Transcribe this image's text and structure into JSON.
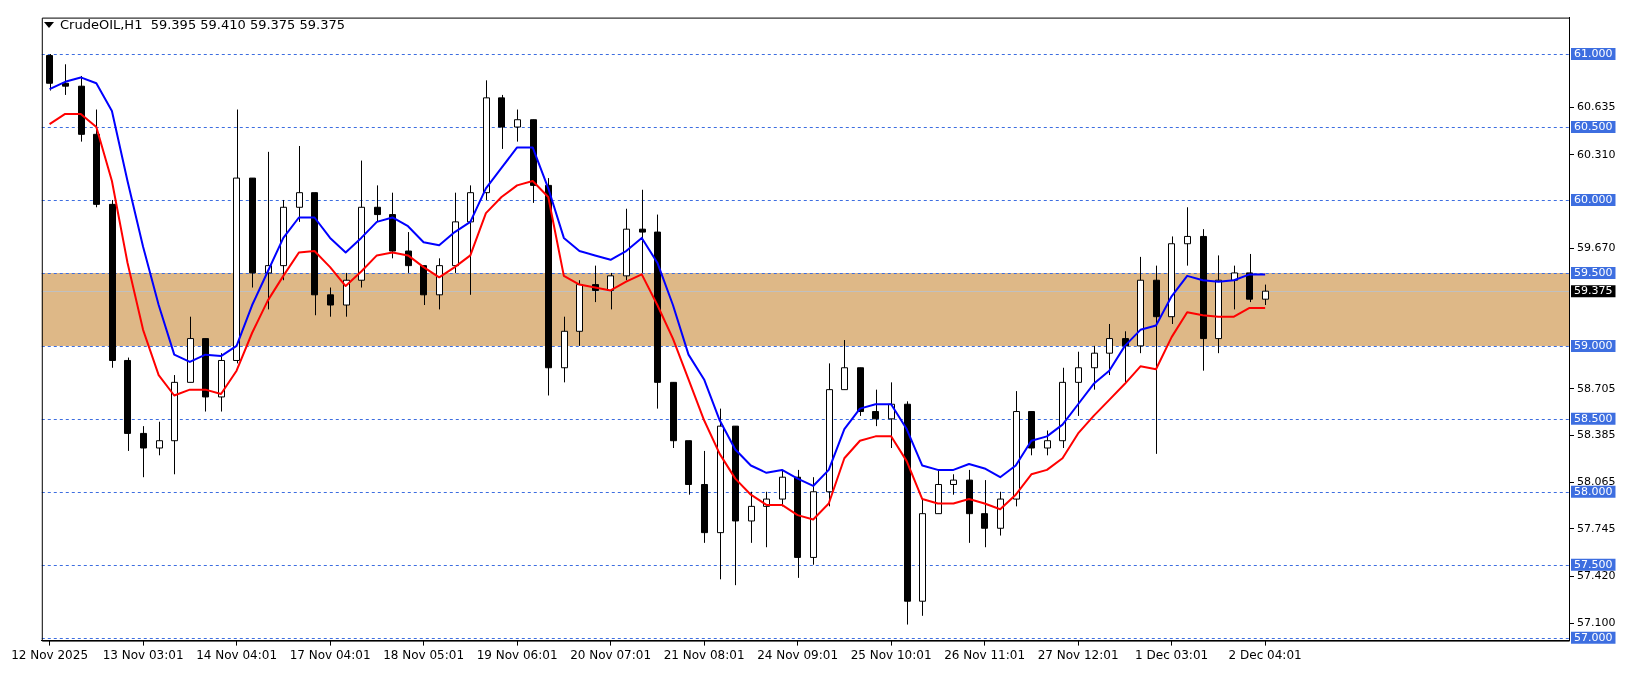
{
  "chart_data": {
    "type": "candlestick",
    "title": "CrudeOIL,H1  59.395 59.410 59.375 59.375",
    "color": "#000000",
    "categories": [
      "12 Nov 2025",
      null,
      null,
      null,
      null,
      null,
      "13 Nov 03:01",
      null,
      null,
      null,
      null,
      null,
      "14 Nov 04:01",
      null,
      null,
      null,
      null,
      null,
      "17 Nov 04:01",
      null,
      null,
      null,
      null,
      null,
      "18 Nov 05:01",
      null,
      null,
      null,
      null,
      null,
      "19 Nov 06:01",
      null,
      null,
      null,
      null,
      null,
      "20 Nov 07:01",
      null,
      null,
      null,
      null,
      null,
      "21 Nov 08:01",
      null,
      null,
      null,
      null,
      null,
      "24 Nov 09:01",
      null,
      null,
      null,
      null,
      null,
      "25 Nov 10:01",
      null,
      null,
      null,
      null,
      null,
      "26 Nov 11:01",
      null,
      null,
      null,
      null,
      null,
      "27 Nov 12:01",
      null,
      null,
      null,
      null,
      null,
      "1 Dec 03:01",
      null,
      null,
      null,
      null,
      null,
      "2 Dec 04:01",
      null,
      null,
      null,
      null,
      null,
      null,
      null,
      null,
      null,
      null,
      null,
      null,
      null,
      null,
      null,
      null,
      null,
      null,
      null
    ],
    "ohlc": [
      [
        60.99,
        61.0,
        60.75,
        60.8
      ],
      [
        60.8,
        60.93,
        60.72,
        60.78
      ],
      [
        60.78,
        60.85,
        60.4,
        60.45
      ],
      [
        60.45,
        60.62,
        59.95,
        59.97
      ],
      [
        59.97,
        60.0,
        58.85,
        58.9
      ],
      [
        58.9,
        58.92,
        58.28,
        58.4
      ],
      [
        58.4,
        58.45,
        58.1,
        58.3
      ],
      [
        58.3,
        58.48,
        58.25,
        58.35
      ],
      [
        58.35,
        58.8,
        58.12,
        58.75
      ],
      [
        58.75,
        59.2,
        58.75,
        59.05
      ],
      [
        59.05,
        59.05,
        58.55,
        58.65
      ],
      [
        58.65,
        58.95,
        58.55,
        58.9
      ],
      [
        58.9,
        60.62,
        58.88,
        60.15
      ],
      [
        60.15,
        60.15,
        59.4,
        59.5
      ],
      [
        59.5,
        60.33,
        59.25,
        59.55
      ],
      [
        59.55,
        60.0,
        59.45,
        59.95
      ],
      [
        59.95,
        60.37,
        59.85,
        60.05
      ],
      [
        60.05,
        60.05,
        59.21,
        59.35
      ],
      [
        59.35,
        59.4,
        59.2,
        59.28
      ],
      [
        59.28,
        59.5,
        59.2,
        59.45
      ],
      [
        59.45,
        60.27,
        59.4,
        59.95
      ],
      [
        59.95,
        60.1,
        59.85,
        59.9
      ],
      [
        59.9,
        60.05,
        59.6,
        59.65
      ],
      [
        59.65,
        59.78,
        59.5,
        59.55
      ],
      [
        59.55,
        59.55,
        59.28,
        59.35
      ],
      [
        59.35,
        59.6,
        59.25,
        59.55
      ],
      [
        59.55,
        60.05,
        59.5,
        59.85
      ],
      [
        59.85,
        60.1,
        59.35,
        60.05
      ],
      [
        60.05,
        60.82,
        60.0,
        60.7
      ],
      [
        60.7,
        60.72,
        60.35,
        60.5
      ],
      [
        60.5,
        60.62,
        60.4,
        60.55
      ],
      [
        60.55,
        60.55,
        59.98,
        60.1
      ],
      [
        60.1,
        60.15,
        58.66,
        58.85
      ],
      [
        58.85,
        59.2,
        58.75,
        59.1
      ],
      [
        59.1,
        59.45,
        59.0,
        59.42
      ],
      [
        59.42,
        59.55,
        59.3,
        59.38
      ],
      [
        59.38,
        59.5,
        59.25,
        59.48
      ],
      [
        59.48,
        59.94,
        59.45,
        59.8
      ],
      [
        59.8,
        60.07,
        59.5,
        59.78
      ],
      [
        59.78,
        59.9,
        58.57,
        58.75
      ],
      [
        58.75,
        58.75,
        58.3,
        58.35
      ],
      [
        58.35,
        58.35,
        57.98,
        58.05
      ],
      [
        58.05,
        58.28,
        57.65,
        57.72
      ],
      [
        57.72,
        58.57,
        57.4,
        58.45
      ],
      [
        58.45,
        58.45,
        57.36,
        57.8
      ],
      [
        57.8,
        58.0,
        57.65,
        57.9
      ],
      [
        57.9,
        58.0,
        57.62,
        57.95
      ],
      [
        57.95,
        58.15,
        57.9,
        58.1
      ],
      [
        58.1,
        58.15,
        57.41,
        57.55
      ],
      [
        57.55,
        58.1,
        57.5,
        58.0
      ],
      [
        58.0,
        58.88,
        57.9,
        58.7
      ],
      [
        58.7,
        59.04,
        58.7,
        58.85
      ],
      [
        58.85,
        58.85,
        58.52,
        58.55
      ],
      [
        58.55,
        58.7,
        58.45,
        58.5
      ],
      [
        58.5,
        58.75,
        58.3,
        58.6
      ],
      [
        58.6,
        58.62,
        57.09,
        57.25
      ],
      [
        57.25,
        57.95,
        57.15,
        57.85
      ],
      [
        57.85,
        58.15,
        57.85,
        58.05
      ],
      [
        58.05,
        58.12,
        57.98,
        58.08
      ],
      [
        58.08,
        58.15,
        57.65,
        57.85
      ],
      [
        57.85,
        58.08,
        57.62,
        57.75
      ],
      [
        57.75,
        58.0,
        57.7,
        57.95
      ],
      [
        57.95,
        58.69,
        57.9,
        58.55
      ],
      [
        58.55,
        58.55,
        58.25,
        58.3
      ],
      [
        58.3,
        58.42,
        58.25,
        58.35
      ],
      [
        58.35,
        58.85,
        58.3,
        58.75
      ],
      [
        58.75,
        58.96,
        58.52,
        58.85
      ],
      [
        58.85,
        59.0,
        58.7,
        58.95
      ],
      [
        58.95,
        59.15,
        58.8,
        59.05
      ],
      [
        59.05,
        59.1,
        58.75,
        59.0
      ],
      [
        59.0,
        59.61,
        58.95,
        59.45
      ],
      [
        59.45,
        59.55,
        58.26,
        59.2
      ],
      [
        59.2,
        59.75,
        59.15,
        59.7
      ],
      [
        59.7,
        59.95,
        59.55,
        59.75
      ],
      [
        59.75,
        59.8,
        58.83,
        59.05
      ],
      [
        59.05,
        59.62,
        58.95,
        59.45
      ],
      [
        59.45,
        59.55,
        59.25,
        59.5
      ],
      [
        59.5,
        59.63,
        59.3,
        59.32
      ],
      [
        59.32,
        59.42,
        59.28,
        59.375
      ],
      null,
      null,
      null,
      null,
      null,
      null,
      null,
      null,
      null,
      null,
      null,
      null,
      null,
      null,
      null,
      null,
      null,
      null,
      null
    ],
    "series": [
      {
        "type": "line",
        "color": "#0000ff",
        "values": [
          60.76,
          60.81,
          60.84,
          60.8,
          60.61,
          60.13,
          59.68,
          59.28,
          58.94,
          58.89,
          58.94,
          58.93,
          59.0,
          59.28,
          59.51,
          59.74,
          59.88,
          59.88,
          59.74,
          59.64,
          59.74,
          59.85,
          59.88,
          59.82,
          59.71,
          59.69,
          59.78,
          59.85,
          60.08,
          60.22,
          60.36,
          60.36,
          60.08,
          59.74,
          59.65,
          59.62,
          59.59,
          59.65,
          59.74,
          59.57,
          59.28,
          58.94,
          58.77,
          58.49,
          58.29,
          58.18,
          58.13,
          58.15,
          58.09,
          58.04,
          58.15,
          58.43,
          58.57,
          58.6,
          58.6,
          58.43,
          58.18,
          58.15,
          58.15,
          58.19,
          58.16,
          58.1,
          58.18,
          58.35,
          58.38,
          58.46,
          58.6,
          58.74,
          58.83,
          59.0,
          59.11,
          59.14,
          59.34,
          59.48,
          59.45,
          59.44,
          59.45,
          59.49,
          59.49,
          null,
          null,
          null,
          null,
          null,
          null,
          null,
          null,
          null,
          null,
          null,
          null,
          null,
          null,
          null,
          null,
          null,
          null,
          null
        ]
      },
      {
        "type": "line",
        "color": "#ff0000",
        "values": [
          60.52,
          60.59,
          60.59,
          60.5,
          60.13,
          59.57,
          59.11,
          58.8,
          58.66,
          58.7,
          58.7,
          58.67,
          58.83,
          59.09,
          59.31,
          59.48,
          59.64,
          59.65,
          59.54,
          59.41,
          59.51,
          59.62,
          59.64,
          59.62,
          59.54,
          59.47,
          59.54,
          59.62,
          59.91,
          60.02,
          60.1,
          60.13,
          60.02,
          59.48,
          59.42,
          59.4,
          59.38,
          59.44,
          59.49,
          59.28,
          59.05,
          58.77,
          58.49,
          58.26,
          58.09,
          57.98,
          57.91,
          57.91,
          57.84,
          57.81,
          57.92,
          58.23,
          58.35,
          58.38,
          58.38,
          58.21,
          57.95,
          57.92,
          57.92,
          57.95,
          57.92,
          57.88,
          57.98,
          58.12,
          58.15,
          58.23,
          58.4,
          58.52,
          58.63,
          58.74,
          58.86,
          58.84,
          59.06,
          59.23,
          59.21,
          59.2,
          59.2,
          59.26,
          59.26,
          null,
          null,
          null,
          null,
          null,
          null,
          null,
          null,
          null,
          null,
          null,
          null,
          null,
          null,
          null,
          null,
          null,
          null,
          null
        ]
      }
    ],
    "ylim": [
      56.98,
      61.25
    ],
    "yticks": [
      {
        "value": 60.635,
        "label": "60.635"
      },
      {
        "value": 60.31,
        "label": "60.310"
      },
      {
        "value": 59.67,
        "label": "59.670"
      },
      {
        "value": 58.705,
        "label": "58.705"
      },
      {
        "value": 58.385,
        "label": "58.385"
      },
      {
        "value": 58.065,
        "label": "58.065"
      },
      {
        "value": 57.745,
        "label": "57.745"
      },
      {
        "value": 57.42,
        "label": "57.420"
      },
      {
        "value": 57.1,
        "label": "57.100"
      }
    ],
    "ref_lines": [
      {
        "axis": "y",
        "value": 61,
        "label": "61.000",
        "color": "#3d6ee0",
        "line_style": "dashed"
      },
      {
        "axis": "y",
        "value": 60.5,
        "label": "60.500",
        "color": "#3d6ee0",
        "line_style": "dashed"
      },
      {
        "axis": "y",
        "value": 60,
        "label": "60.000",
        "color": "#3d6ee0",
        "line_style": "dashed"
      },
      {
        "axis": "y",
        "value": 59.5,
        "label": "59.500",
        "color": "#3d6ee0",
        "line_style": "dashed"
      },
      {
        "axis": "y",
        "value": 59.375,
        "label": "59.375",
        "color": "#c0c0c0",
        "line_style": "solid"
      },
      {
        "axis": "y",
        "value": 59,
        "label": "59.000",
        "color": "#3d6ee0",
        "line_style": "dashed"
      },
      {
        "axis": "y",
        "value": 58.5,
        "label": "58.500",
        "color": "#3d6ee0",
        "line_style": "dashed"
      },
      {
        "axis": "y",
        "value": 58,
        "label": "58.000",
        "color": "#3d6ee0",
        "line_style": "dashed"
      },
      {
        "axis": "y",
        "value": 57.5,
        "label": "57.500",
        "color": "#3d6ee0",
        "line_style": "dashed"
      },
      {
        "axis": "y",
        "value": 57,
        "label": "57.000",
        "color": "#3d6ee0",
        "line_style": "dashed"
      }
    ],
    "bands": [
      {
        "axis": "y",
        "from": 59,
        "to": 59.5,
        "color": "#deb887"
      }
    ],
    "legend": false,
    "grid": false
  }
}
